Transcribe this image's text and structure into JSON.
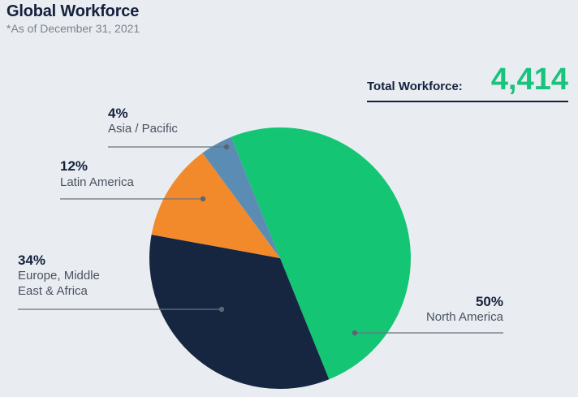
{
  "header": {
    "title": "Global Workforce",
    "subtitle": "*As of December 31, 2021"
  },
  "total": {
    "label": "Total Workforce:",
    "value": "4,414"
  },
  "colors": {
    "north_america": "#14c574",
    "europe_mea": "#162640",
    "latin_america": "#f28a2b",
    "asia_pacific": "#5b8db4"
  },
  "chart_data": {
    "type": "pie",
    "title": "Global Workforce",
    "unit": "%",
    "slices": [
      {
        "key": "north_america",
        "pct_label": "50%",
        "label_lines": [
          "North America"
        ],
        "value": 50
      },
      {
        "key": "europe_mea",
        "pct_label": "34%",
        "label_lines": [
          "Europe, Middle",
          "East & Africa"
        ],
        "value": 34
      },
      {
        "key": "latin_america",
        "pct_label": "12%",
        "label_lines": [
          "Latin America"
        ],
        "value": 12
      },
      {
        "key": "asia_pacific",
        "pct_label": "4%",
        "label_lines": [
          "Asia / Pacific"
        ],
        "value": 4
      }
    ]
  }
}
